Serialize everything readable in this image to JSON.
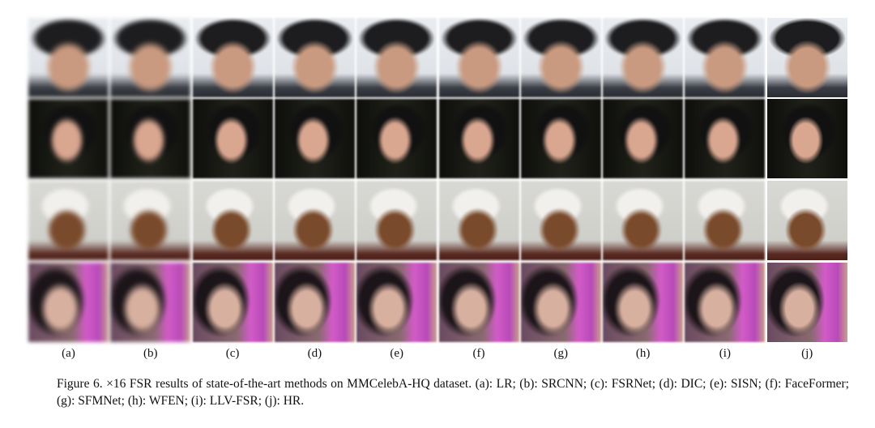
{
  "figure": {
    "columns": [
      "(a)",
      "(b)",
      "(c)",
      "(d)",
      "(e)",
      "(f)",
      "(g)",
      "(h)",
      "(i)",
      "(j)"
    ],
    "caption": "Figure 6. ×16 FSR results of state-of-the-art methods on MMCelebA-HQ dataset. (a): LR; (b): SRCNN; (c): FSRNet; (d): DIC; (e): SISN; (f): FaceFormer; (g): SFMNet; (h): WFEN; (i): LLV-FSR; (j): HR."
  }
}
